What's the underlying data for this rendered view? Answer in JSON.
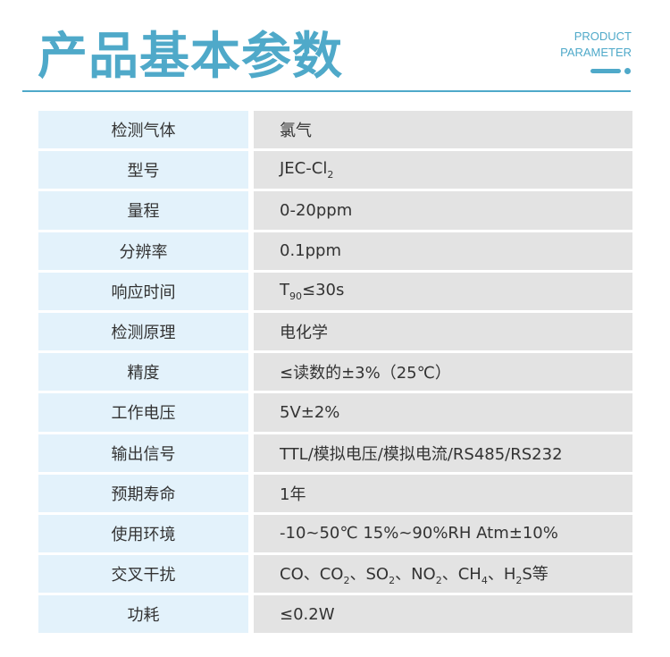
{
  "header": {
    "title": "产品基本参数",
    "subtitle_line1": "PRODUCT",
    "subtitle_line2": "PARAMETER",
    "accent": "#4fa9c9"
  },
  "rows": [
    {
      "label": "检测气体",
      "value": [
        {
          "t": "氯气"
        }
      ]
    },
    {
      "label": "型号",
      "value": [
        {
          "t": "JEC-Cl"
        },
        {
          "t": "2",
          "sub": true
        }
      ]
    },
    {
      "label": "量程",
      "value": [
        {
          "t": "0-20ppm"
        }
      ]
    },
    {
      "label": "分辨率",
      "value": [
        {
          "t": "0.1ppm"
        }
      ]
    },
    {
      "label": "响应时间",
      "value": [
        {
          "t": "T"
        },
        {
          "t": "90",
          "sub": true
        },
        {
          "t": "≤30s"
        }
      ]
    },
    {
      "label": "检测原理",
      "value": [
        {
          "t": "电化学"
        }
      ]
    },
    {
      "label": "精度",
      "value": [
        {
          "t": "≤读数的±3%（25℃）"
        }
      ]
    },
    {
      "label": "工作电压",
      "value": [
        {
          "t": "5V±2%"
        }
      ]
    },
    {
      "label": "输出信号",
      "value": [
        {
          "t": "TTL/模拟电压/模拟电流/RS485/RS232"
        }
      ]
    },
    {
      "label": "预期寿命",
      "value": [
        {
          "t": "1年"
        }
      ]
    },
    {
      "label": "使用环境",
      "value": [
        {
          "t": "-10~50℃ 15%~90%RH  Atm±10%"
        }
      ]
    },
    {
      "label": "交叉干扰",
      "value": [
        {
          "t": "CO、CO"
        },
        {
          "t": "2",
          "sub": true
        },
        {
          "t": "、SO"
        },
        {
          "t": "2",
          "sub": true
        },
        {
          "t": "、NO"
        },
        {
          "t": "2",
          "sub": true
        },
        {
          "t": "、CH"
        },
        {
          "t": "4",
          "sub": true
        },
        {
          "t": "、H"
        },
        {
          "t": "2",
          "sub": true
        },
        {
          "t": "S等"
        }
      ]
    },
    {
      "label": "功耗",
      "value": [
        {
          "t": "≤0.2W"
        }
      ]
    }
  ]
}
